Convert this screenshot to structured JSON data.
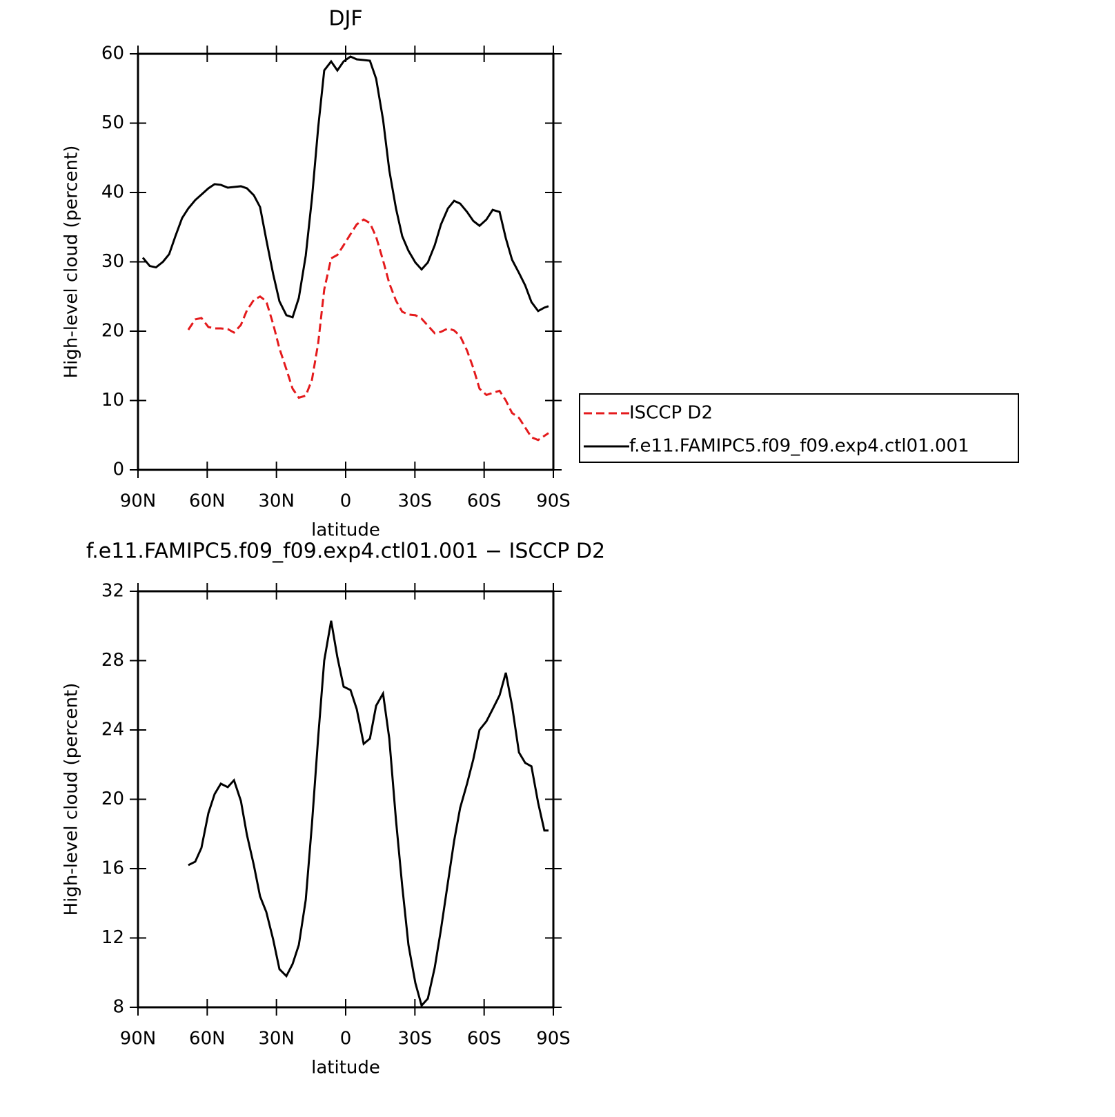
{
  "chart_data": [
    {
      "type": "line",
      "title": "DJF",
      "xlabel": "latitude",
      "ylabel": "High-level cloud (percent)",
      "x": [
        87.9,
        84.9,
        82.2,
        79.2,
        76.5,
        73.9,
        70.9,
        68.2,
        65.2,
        62.5,
        59.5,
        56.8,
        54.1,
        51.1,
        48.4,
        45.4,
        42.8,
        39.8,
        37.1,
        34.4,
        31.4,
        28.7,
        25.7,
        23.0,
        20.3,
        17.3,
        14.6,
        11.9,
        9.3,
        6.3,
        3.6,
        0.9,
        -2.1,
        -4.8,
        -7.8,
        -10.5,
        -13.2,
        -16.2,
        -18.9,
        -21.8,
        -24.5,
        -27.2,
        -30.2,
        -32.9,
        -35.6,
        -38.6,
        -41.3,
        -44.3,
        -47.0,
        -49.6,
        -52.6,
        -55.3,
        -58.0,
        -61.0,
        -63.7,
        -66.7,
        -69.4,
        -72.1,
        -75.1,
        -77.8,
        -80.5,
        -83.4,
        -86.1,
        -87.9
      ],
      "series": [
        {
          "name": "ISCCP D2",
          "color": "#e41a1c",
          "linestyle": "dashed",
          "values": [
            null,
            null,
            null,
            null,
            null,
            null,
            null,
            20.2,
            21.7,
            21.9,
            20.6,
            20.4,
            20.4,
            20.3,
            19.8,
            20.9,
            23.0,
            24.5,
            25.0,
            24.3,
            21.0,
            17.5,
            14.5,
            11.7,
            10.4,
            10.7,
            13.0,
            18.3,
            26.0,
            30.5,
            31.0,
            32.4,
            34.0,
            35.4,
            36.1,
            35.6,
            33.6,
            30.2,
            26.9,
            24.4,
            22.8,
            22.4,
            22.3,
            21.8,
            20.8,
            19.7,
            19.9,
            20.4,
            20.1,
            19.3,
            17.2,
            14.7,
            11.7,
            10.8,
            11.1,
            11.4,
            10.0,
            8.2,
            7.5,
            6.1,
            4.7,
            4.3,
            4.9,
            5.3
          ]
        },
        {
          "name": "f.e11.FAMIPC5.f09_f09.exp4.ctl01.001",
          "color": "#000000",
          "linestyle": "solid",
          "values": [
            30.6,
            29.4,
            29.2,
            30.0,
            31.1,
            33.6,
            36.3,
            37.7,
            38.9,
            39.7,
            40.6,
            41.2,
            41.1,
            40.7,
            40.8,
            40.9,
            40.6,
            39.6,
            37.9,
            33.2,
            28.2,
            24.3,
            22.3,
            22.0,
            24.8,
            30.9,
            39.2,
            49.4,
            57.6,
            58.9,
            57.6,
            58.9,
            59.6,
            59.2,
            59.1,
            59.0,
            56.4,
            50.5,
            43.2,
            37.7,
            33.7,
            31.6,
            29.9,
            28.9,
            29.9,
            32.4,
            35.4,
            37.7,
            38.8,
            38.4,
            37.2,
            35.9,
            35.2,
            36.1,
            37.5,
            37.2,
            33.4,
            30.3,
            28.4,
            26.6,
            24.2,
            22.9,
            23.4,
            23.6
          ]
        }
      ],
      "xlim": [
        90,
        -90
      ],
      "xticks": [
        {
          "value": 90,
          "label": "90N"
        },
        {
          "value": 60,
          "label": "60N"
        },
        {
          "value": 30,
          "label": "30N"
        },
        0,
        {
          "value": -30,
          "label": "30S"
        },
        {
          "value": -60,
          "label": "60S"
        },
        {
          "value": -90,
          "label": "90S"
        }
      ],
      "ylim": [
        0,
        60
      ],
      "yticks": [
        0,
        10,
        20,
        30,
        40,
        50,
        60
      ],
      "legend": "outside-right"
    },
    {
      "type": "line",
      "title": "f.e11.FAMIPC5.f09_f09.exp4.ctl01.001 − ISCCP D2",
      "xlabel": "latitude",
      "ylabel": "High-level cloud (percent)",
      "x": [
        68.2,
        65.2,
        62.5,
        59.5,
        56.8,
        54.1,
        51.1,
        48.4,
        45.4,
        42.8,
        39.8,
        37.1,
        34.4,
        31.4,
        28.7,
        25.7,
        23.0,
        20.3,
        17.3,
        14.6,
        11.9,
        9.3,
        6.3,
        3.6,
        0.9,
        -2.1,
        -4.8,
        -7.8,
        -10.5,
        -13.2,
        -16.2,
        -18.9,
        -21.8,
        -24.5,
        -27.2,
        -30.2,
        -32.9,
        -35.6,
        -38.6,
        -41.3,
        -44.3,
        -47.0,
        -49.6,
        -52.6,
        -55.3,
        -58.0,
        -61.0,
        -63.7,
        -66.7,
        -69.4,
        -72.1,
        -75.1,
        -77.8,
        -80.5,
        -83.4,
        -86.1,
        -87.9
      ],
      "series": [
        {
          "color": "#000000",
          "linestyle": "solid",
          "values": [
            16.2,
            16.4,
            17.2,
            19.2,
            20.3,
            20.9,
            20.7,
            21.1,
            19.9,
            17.95,
            16.2,
            14.4,
            13.5,
            11.9,
            10.2,
            9.8,
            10.5,
            11.6,
            14.2,
            18.6,
            23.6,
            28.0,
            30.3,
            28.2,
            26.5,
            26.3,
            25.2,
            23.2,
            23.5,
            25.4,
            26.1,
            23.5,
            18.8,
            15.0,
            11.6,
            9.4,
            8.1,
            8.5,
            10.3,
            12.5,
            15.2,
            17.6,
            19.5,
            20.9,
            22.3,
            24.0,
            24.5,
            25.2,
            26.0,
            27.3,
            25.4,
            22.7,
            22.1,
            21.9,
            19.8,
            18.2,
            18.2
          ]
        }
      ],
      "xlim": [
        90,
        -90
      ],
      "xticks": [
        {
          "value": 90,
          "label": "90N"
        },
        {
          "value": 60,
          "label": "60N"
        },
        {
          "value": 30,
          "label": "30N"
        },
        0,
        {
          "value": -30,
          "label": "30S"
        },
        {
          "value": -60,
          "label": "60S"
        },
        {
          "value": -90,
          "label": "90S"
        }
      ],
      "ylim": [
        8,
        32
      ],
      "yticks": [
        8,
        12,
        16,
        20,
        24,
        28,
        32
      ]
    }
  ]
}
